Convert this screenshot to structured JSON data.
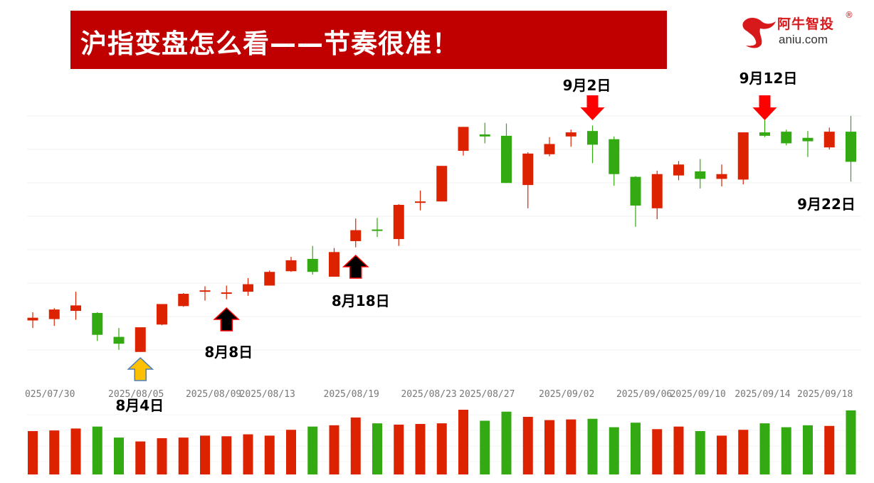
{
  "header": {
    "title": "沪指变盘怎么看——节奏很准！"
  },
  "logo": {
    "brand_cn": "阿牛智投",
    "registered": "®",
    "domain": "aniu.com",
    "color": "#d7191c"
  },
  "colors": {
    "up": "#dd2200",
    "down": "#33aa11",
    "banner": "#c00000"
  },
  "chart_data": {
    "type": "candlestick",
    "title": "",
    "grid": true,
    "x_ticks": [
      {
        "label": "025/07/30",
        "index": 0.8
      },
      {
        "label": "2025/08/05",
        "index": 4.8
      },
      {
        "label": "2025/08/09",
        "index": 8.4
      },
      {
        "label": "2025/08/13",
        "index": 10.9
      },
      {
        "label": "2025/08/19",
        "index": 14.8
      },
      {
        "label": "2025/08/23",
        "index": 18.4
      },
      {
        "label": "2025/08/27",
        "index": 21.1
      },
      {
        "label": "2025/09/02",
        "index": 24.8
      },
      {
        "label": "2025/09/06",
        "index": 28.4
      },
      {
        "label": "2025/09/10",
        "index": 30.9
      },
      {
        "label": "2025/09/14",
        "index": 33.9
      },
      {
        "label": "2025/09/18",
        "index": 36.8
      }
    ],
    "ohlc": [
      [
        3601,
        3613,
        3590,
        3605
      ],
      [
        3603,
        3619,
        3593,
        3617
      ],
      [
        3615,
        3643,
        3602,
        3623
      ],
      [
        3612,
        3613,
        3571,
        3580
      ],
      [
        3577,
        3590,
        3558,
        3567
      ],
      [
        3555,
        3591,
        3555,
        3591
      ],
      [
        3595,
        3625,
        3594,
        3625
      ],
      [
        3622,
        3641,
        3621,
        3640
      ],
      [
        3644,
        3651,
        3630,
        3645
      ],
      [
        3641,
        3652,
        3632,
        3642
      ],
      [
        3643,
        3663,
        3637,
        3654
      ],
      [
        3652,
        3674,
        3652,
        3672
      ],
      [
        3673,
        3694,
        3672,
        3689
      ],
      [
        3691,
        3710,
        3668,
        3672
      ],
      [
        3665,
        3707,
        3665,
        3701
      ],
      [
        3717,
        3750,
        3708,
        3733
      ],
      [
        3734,
        3751,
        3723,
        3732
      ],
      [
        3720,
        3771,
        3710,
        3770
      ],
      [
        3773,
        3791,
        3762,
        3775
      ],
      [
        3775,
        3827,
        3775,
        3827
      ],
      [
        3849,
        3884,
        3842,
        3884
      ],
      [
        3873,
        3890,
        3860,
        3870
      ],
      [
        3871,
        3889,
        3802,
        3802
      ],
      [
        3799,
        3847,
        3765,
        3845
      ],
      [
        3844,
        3869,
        3841,
        3859
      ],
      [
        3870,
        3880,
        3855,
        3876
      ],
      [
        3878,
        3886,
        3831,
        3858
      ],
      [
        3866,
        3870,
        3798,
        3815
      ],
      [
        3811,
        3812,
        3738,
        3769
      ],
      [
        3765,
        3820,
        3749,
        3815
      ],
      [
        3813,
        3834,
        3806,
        3829
      ],
      [
        3819,
        3837,
        3794,
        3808
      ],
      [
        3808,
        3829,
        3797,
        3815
      ],
      [
        3807,
        3876,
        3800,
        3876
      ],
      [
        3876,
        3894,
        3869,
        3871
      ],
      [
        3877,
        3880,
        3857,
        3860
      ],
      [
        3868,
        3878,
        3840,
        3863
      ],
      [
        3854,
        3883,
        3851,
        3877
      ],
      [
        3877,
        3900,
        3804,
        3833
      ]
    ],
    "ohlc_fields": [
      "open",
      "high",
      "low",
      "close"
    ],
    "price_range": [
      3555,
      3900
    ],
    "volume": [
      67,
      68,
      71,
      74,
      57,
      51,
      56,
      57,
      60,
      59,
      62,
      60,
      69,
      74,
      76,
      88,
      79,
      77,
      78,
      79,
      100,
      83,
      97,
      89,
      84,
      85,
      86,
      73,
      80,
      70,
      74,
      67,
      60,
      69,
      79,
      73,
      76,
      75,
      99
    ],
    "annotations": [
      {
        "text": "8月4日",
        "index": 5,
        "marker": "up-arrow",
        "color": "#ffc000"
      },
      {
        "text": "8月8日",
        "index": 9,
        "marker": "up-arrow",
        "color": "#000000"
      },
      {
        "text": "8月18日",
        "index": 15,
        "marker": "up-arrow",
        "color": "#000000"
      },
      {
        "text": "9月2日",
        "index": 26,
        "marker": "down-arrow",
        "color": "#ff0000"
      },
      {
        "text": "9月12日",
        "index": 34,
        "marker": "down-arrow",
        "color": "#ff0000"
      },
      {
        "text": "9月22日",
        "index": 38,
        "marker": "none",
        "color": "#000000"
      }
    ]
  }
}
